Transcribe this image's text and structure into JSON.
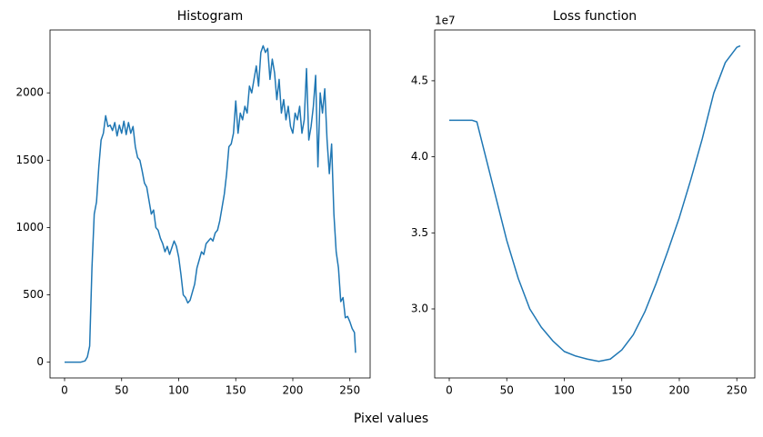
{
  "chart_data": [
    {
      "type": "line",
      "title": "Histogram",
      "color": "#1f77b4",
      "x": [
        0,
        2,
        4,
        6,
        8,
        10,
        12,
        14,
        16,
        18,
        20,
        22,
        24,
        26,
        28,
        30,
        32,
        34,
        36,
        38,
        40,
        42,
        44,
        46,
        48,
        50,
        52,
        54,
        56,
        58,
        60,
        62,
        64,
        66,
        68,
        70,
        72,
        74,
        76,
        78,
        80,
        82,
        84,
        86,
        88,
        90,
        92,
        94,
        96,
        98,
        100,
        102,
        104,
        106,
        108,
        110,
        112,
        114,
        116,
        118,
        120,
        122,
        124,
        126,
        128,
        130,
        132,
        134,
        136,
        138,
        140,
        142,
        144,
        146,
        148,
        150,
        152,
        154,
        156,
        158,
        160,
        162,
        164,
        166,
        168,
        170,
        172,
        174,
        176,
        178,
        180,
        182,
        184,
        186,
        188,
        190,
        192,
        194,
        196,
        198,
        200,
        202,
        204,
        206,
        208,
        210,
        212,
        214,
        216,
        218,
        220,
        222,
        224,
        226,
        228,
        230,
        232,
        234,
        236,
        238,
        240,
        242,
        244,
        246,
        248,
        250,
        252,
        254,
        255
      ],
      "values": [
        0,
        0,
        0,
        0,
        0,
        0,
        0,
        0,
        5,
        10,
        40,
        120,
        700,
        1100,
        1190,
        1450,
        1650,
        1700,
        1830,
        1750,
        1760,
        1720,
        1780,
        1680,
        1760,
        1700,
        1790,
        1690,
        1780,
        1700,
        1750,
        1600,
        1520,
        1500,
        1420,
        1330,
        1300,
        1200,
        1100,
        1130,
        1000,
        980,
        920,
        880,
        820,
        860,
        800,
        850,
        900,
        860,
        780,
        650,
        500,
        480,
        440,
        460,
        520,
        580,
        700,
        760,
        820,
        800,
        880,
        900,
        920,
        900,
        960,
        980,
        1050,
        1150,
        1250,
        1400,
        1600,
        1620,
        1700,
        1940,
        1700,
        1850,
        1800,
        1900,
        1850,
        2050,
        2000,
        2100,
        2200,
        2050,
        2300,
        2350,
        2300,
        2330,
        2100,
        2250,
        2150,
        1950,
        2100,
        1850,
        1950,
        1800,
        1900,
        1750,
        1700,
        1850,
        1800,
        1900,
        1700,
        1800,
        2180,
        1650,
        1750,
        1900,
        2130,
        1450,
        2000,
        1850,
        2030,
        1650,
        1400,
        1620,
        1100,
        820,
        700,
        450,
        480,
        330,
        340,
        300,
        250,
        220,
        70
      ],
      "xlim": [
        -12.75,
        267.75
      ],
      "ylim": [
        -117,
        2467
      ],
      "xticks": [
        0,
        50,
        100,
        150,
        200,
        250
      ],
      "yticks": [
        0,
        500,
        1000,
        1500,
        2000
      ]
    },
    {
      "type": "line",
      "title": "Loss function",
      "color": "#1f77b4",
      "x": [
        0,
        10,
        20,
        24,
        30,
        40,
        50,
        60,
        70,
        80,
        90,
        100,
        110,
        120,
        130,
        140,
        150,
        160,
        170,
        180,
        190,
        200,
        210,
        220,
        230,
        240,
        250,
        253
      ],
      "values": [
        42400000,
        42400000,
        42400000,
        42300000,
        40500000,
        37500000,
        34500000,
        32000000,
        30000000,
        28800000,
        27900000,
        27200000,
        26900000,
        26700000,
        26550000,
        26700000,
        27300000,
        28300000,
        29800000,
        31700000,
        33800000,
        36000000,
        38500000,
        41200000,
        44200000,
        46200000,
        47200000,
        47300000
      ],
      "xlim": [
        -12.65,
        265.65
      ],
      "ylim": [
        25460000,
        48340000
      ],
      "xticks": [
        0,
        50,
        100,
        150,
        200,
        250
      ],
      "yticks": [
        {
          "value": 30000000,
          "label": "3.0"
        },
        {
          "value": 35000000,
          "label": "3.5"
        },
        {
          "value": 40000000,
          "label": "4.0"
        },
        {
          "value": 45000000,
          "label": "4.5"
        }
      ],
      "y_offset_label": "1e7"
    }
  ],
  "figure_xlabel": "Pixel values"
}
